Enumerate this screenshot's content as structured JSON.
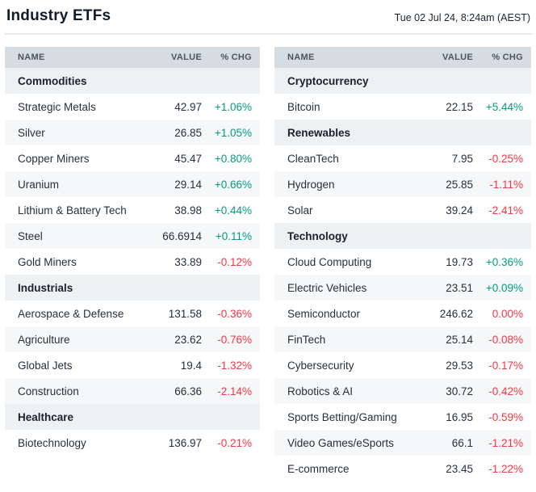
{
  "header": {
    "title": "Industry ETFs",
    "timestamp": "Tue 02 Jul 24, 8:24am (AEST)"
  },
  "columns": {
    "name": "NAME",
    "value": "VALUE",
    "chg": "% CHG"
  },
  "colors": {
    "positive": "#089981",
    "negative": "#f23645",
    "table_header_bg": "#d5dce2",
    "section_bg": "#eef1f4",
    "alt_row_bg": "#f6f7f9"
  },
  "tables": [
    {
      "sections": [
        {
          "title": "Commodities",
          "rows": [
            {
              "name": "Strategic Metals",
              "value": "42.97",
              "chg": "+1.06%"
            },
            {
              "name": "Silver",
              "value": "26.85",
              "chg": "+1.05%"
            },
            {
              "name": "Copper Miners",
              "value": "45.47",
              "chg": "+0.80%"
            },
            {
              "name": "Uranium",
              "value": "29.14",
              "chg": "+0.66%"
            },
            {
              "name": "Lithium & Battery Tech",
              "value": "38.98",
              "chg": "+0.44%"
            },
            {
              "name": "Steel",
              "value": "66.6914",
              "chg": "+0.11%"
            },
            {
              "name": "Gold Miners",
              "value": "33.89",
              "chg": "-0.12%"
            }
          ]
        },
        {
          "title": "Industrials",
          "rows": [
            {
              "name": "Aerospace & Defense",
              "value": "131.58",
              "chg": "-0.36%"
            },
            {
              "name": "Agriculture",
              "value": "23.62",
              "chg": "-0.76%"
            },
            {
              "name": "Global Jets",
              "value": "19.4",
              "chg": "-1.32%"
            },
            {
              "name": "Construction",
              "value": "66.36",
              "chg": "-2.14%"
            }
          ]
        },
        {
          "title": "Healthcare",
          "rows": [
            {
              "name": "Biotechnology",
              "value": "136.97",
              "chg": "-0.21%"
            }
          ]
        }
      ]
    },
    {
      "sections": [
        {
          "title": "Cryptocurrency",
          "rows": [
            {
              "name": "Bitcoin",
              "value": "22.15",
              "chg": "+5.44%"
            }
          ]
        },
        {
          "title": "Renewables",
          "rows": [
            {
              "name": "CleanTech",
              "value": "7.95",
              "chg": "-0.25%"
            },
            {
              "name": "Hydrogen",
              "value": "25.85",
              "chg": "-1.11%"
            },
            {
              "name": "Solar",
              "value": "39.24",
              "chg": "-2.41%"
            }
          ]
        },
        {
          "title": "Technology",
          "rows": [
            {
              "name": "Cloud Computing",
              "value": "19.73",
              "chg": "+0.36%"
            },
            {
              "name": "Electric Vehicles",
              "value": "23.51",
              "chg": "+0.09%"
            },
            {
              "name": "Semiconductor",
              "value": "246.62",
              "chg": "0.00%"
            },
            {
              "name": "FinTech",
              "value": "25.14",
              "chg": "-0.08%"
            },
            {
              "name": "Cybersecurity",
              "value": "29.53",
              "chg": "-0.17%"
            },
            {
              "name": "Robotics & AI",
              "value": "30.72",
              "chg": "-0.42%"
            },
            {
              "name": "Sports Betting/Gaming",
              "value": "16.95",
              "chg": "-0.59%"
            },
            {
              "name": "Video Games/eSports",
              "value": "66.1",
              "chg": "-1.21%"
            },
            {
              "name": "E-commerce",
              "value": "23.45",
              "chg": "-1.22%"
            }
          ]
        }
      ]
    }
  ]
}
